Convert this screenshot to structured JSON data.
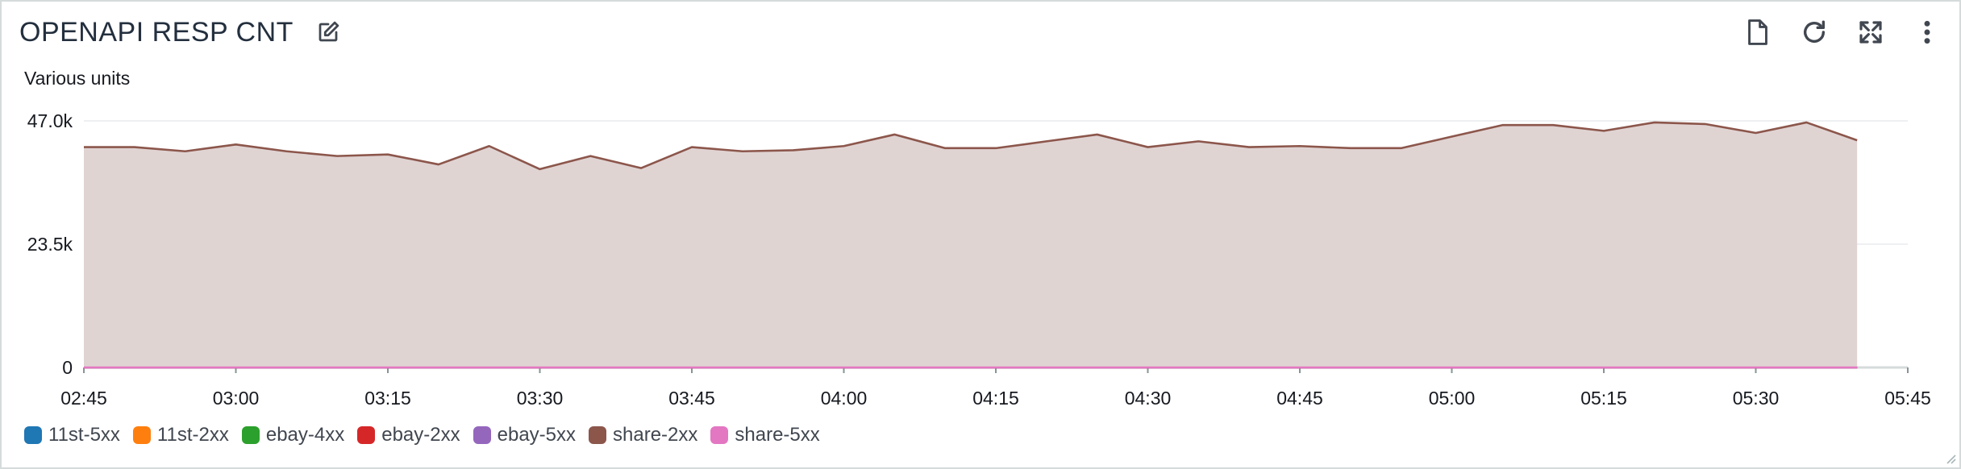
{
  "widget": {
    "title": "OPENAPI RESP CNT",
    "units_label": "Various units"
  },
  "icons": {
    "edit": "edit-icon",
    "download": "file-icon",
    "refresh": "refresh-icon",
    "expand": "expand-icon",
    "menu": "more-vertical-icon"
  },
  "colors": {
    "11st-5xx": "#1f77b4",
    "11st-2xx": "#ff7f0e",
    "ebay-4xx": "#2ca02c",
    "ebay-2xx": "#d62728",
    "ebay-5xx": "#9467bd",
    "share-2xx": "#8c564b",
    "share-5xx": "#e377c2",
    "share-2xx-fill": "#e0d4d3",
    "grid": "#e9ebed",
    "axis": "#d5dbdb"
  },
  "chart_data": {
    "type": "area",
    "ylabel": "Various units",
    "ylim": [
      0,
      47000
    ],
    "y_ticks": [
      "0",
      "23.5k",
      "47.0k"
    ],
    "x_ticks": [
      "02:45",
      "03:00",
      "03:15",
      "03:30",
      "03:45",
      "04:00",
      "04:15",
      "04:30",
      "04:45",
      "05:00",
      "05:15",
      "05:30",
      "05:45"
    ],
    "x_start": "02:45",
    "x_end": "05:45",
    "x": [
      "02:45",
      "02:50",
      "02:55",
      "03:00",
      "03:05",
      "03:10",
      "03:15",
      "03:20",
      "03:25",
      "03:30",
      "03:35",
      "03:40",
      "03:45",
      "03:50",
      "03:55",
      "04:00",
      "04:05",
      "04:10",
      "04:15",
      "04:20",
      "04:25",
      "04:30",
      "04:35",
      "04:40",
      "04:45",
      "04:50",
      "04:55",
      "05:00",
      "05:05",
      "05:10",
      "05:15",
      "05:20",
      "05:25",
      "05:30",
      "05:35",
      "05:40"
    ],
    "series": [
      {
        "name": "11st-5xx",
        "values": [
          0,
          0,
          0,
          0,
          0,
          0,
          0,
          0,
          0,
          0,
          0,
          0,
          0,
          0,
          0,
          0,
          0,
          0,
          0,
          0,
          0,
          0,
          0,
          0,
          0,
          0,
          0,
          0,
          0,
          0,
          0,
          0,
          0,
          0,
          0,
          0
        ]
      },
      {
        "name": "11st-2xx",
        "values": [
          0,
          0,
          0,
          0,
          0,
          0,
          0,
          0,
          0,
          0,
          0,
          0,
          0,
          0,
          0,
          0,
          0,
          0,
          0,
          0,
          0,
          0,
          0,
          0,
          0,
          0,
          0,
          0,
          0,
          0,
          0,
          0,
          0,
          0,
          0,
          0
        ]
      },
      {
        "name": "ebay-4xx",
        "values": [
          0,
          0,
          0,
          0,
          0,
          0,
          0,
          0,
          0,
          0,
          0,
          0,
          0,
          0,
          0,
          0,
          0,
          0,
          0,
          0,
          0,
          0,
          0,
          0,
          0,
          0,
          0,
          0,
          0,
          0,
          0,
          0,
          0,
          0,
          0,
          0
        ]
      },
      {
        "name": "ebay-2xx",
        "values": [
          0,
          0,
          0,
          0,
          0,
          0,
          0,
          0,
          0,
          0,
          0,
          0,
          0,
          0,
          0,
          0,
          0,
          0,
          0,
          0,
          0,
          0,
          0,
          0,
          0,
          0,
          0,
          0,
          0,
          0,
          0,
          0,
          0,
          0,
          0,
          0
        ]
      },
      {
        "name": "ebay-5xx",
        "values": [
          0,
          0,
          0,
          0,
          0,
          0,
          0,
          0,
          0,
          0,
          0,
          0,
          0,
          0,
          0,
          0,
          0,
          0,
          0,
          0,
          0,
          0,
          0,
          0,
          0,
          0,
          0,
          0,
          0,
          0,
          0,
          0,
          0,
          0,
          0,
          0
        ]
      },
      {
        "name": "share-2xx",
        "values": [
          42000,
          42000,
          41200,
          42500,
          41200,
          40300,
          40600,
          38700,
          42200,
          37800,
          40300,
          38000,
          42000,
          41200,
          41400,
          42200,
          44400,
          41800,
          41800,
          43100,
          44400,
          42000,
          43100,
          42000,
          42200,
          41800,
          41800,
          44000,
          46200,
          46200,
          45100,
          46700,
          46400,
          44700,
          46700,
          43300
        ]
      },
      {
        "name": "share-5xx",
        "values": [
          0,
          0,
          0,
          0,
          0,
          0,
          0,
          0,
          0,
          0,
          0,
          0,
          0,
          0,
          0,
          0,
          0,
          0,
          0,
          0,
          0,
          0,
          0,
          0,
          0,
          0,
          0,
          0,
          0,
          0,
          0,
          0,
          0,
          0,
          0,
          0
        ]
      }
    ],
    "grid": true,
    "legend": "bottom-left"
  }
}
